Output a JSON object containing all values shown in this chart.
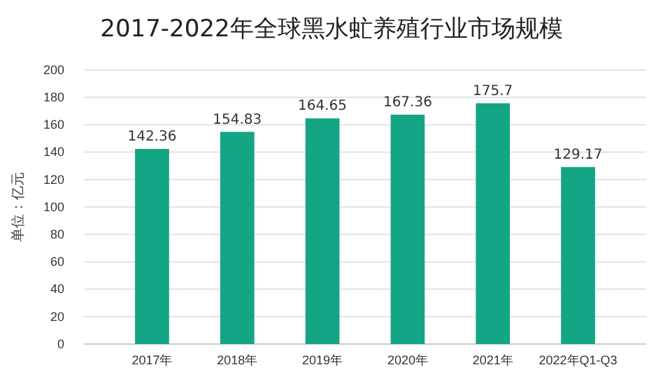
{
  "chart_data": {
    "type": "bar",
    "title": "2017-2022年全球黑水虻养殖行业市场规模",
    "ylabel": "单位：亿元",
    "categories": [
      "2017年",
      "2018年",
      "2019年",
      "2020年",
      "2021年",
      "2022年Q1-Q3"
    ],
    "values": [
      142.36,
      154.83,
      164.65,
      167.36,
      175.7,
      129.17
    ],
    "color": "#14a584",
    "ylim": [
      0,
      200
    ],
    "yticks": [
      0,
      20,
      40,
      60,
      80,
      100,
      120,
      140,
      160,
      180,
      200
    ],
    "grid": "y",
    "data_labels": true
  }
}
